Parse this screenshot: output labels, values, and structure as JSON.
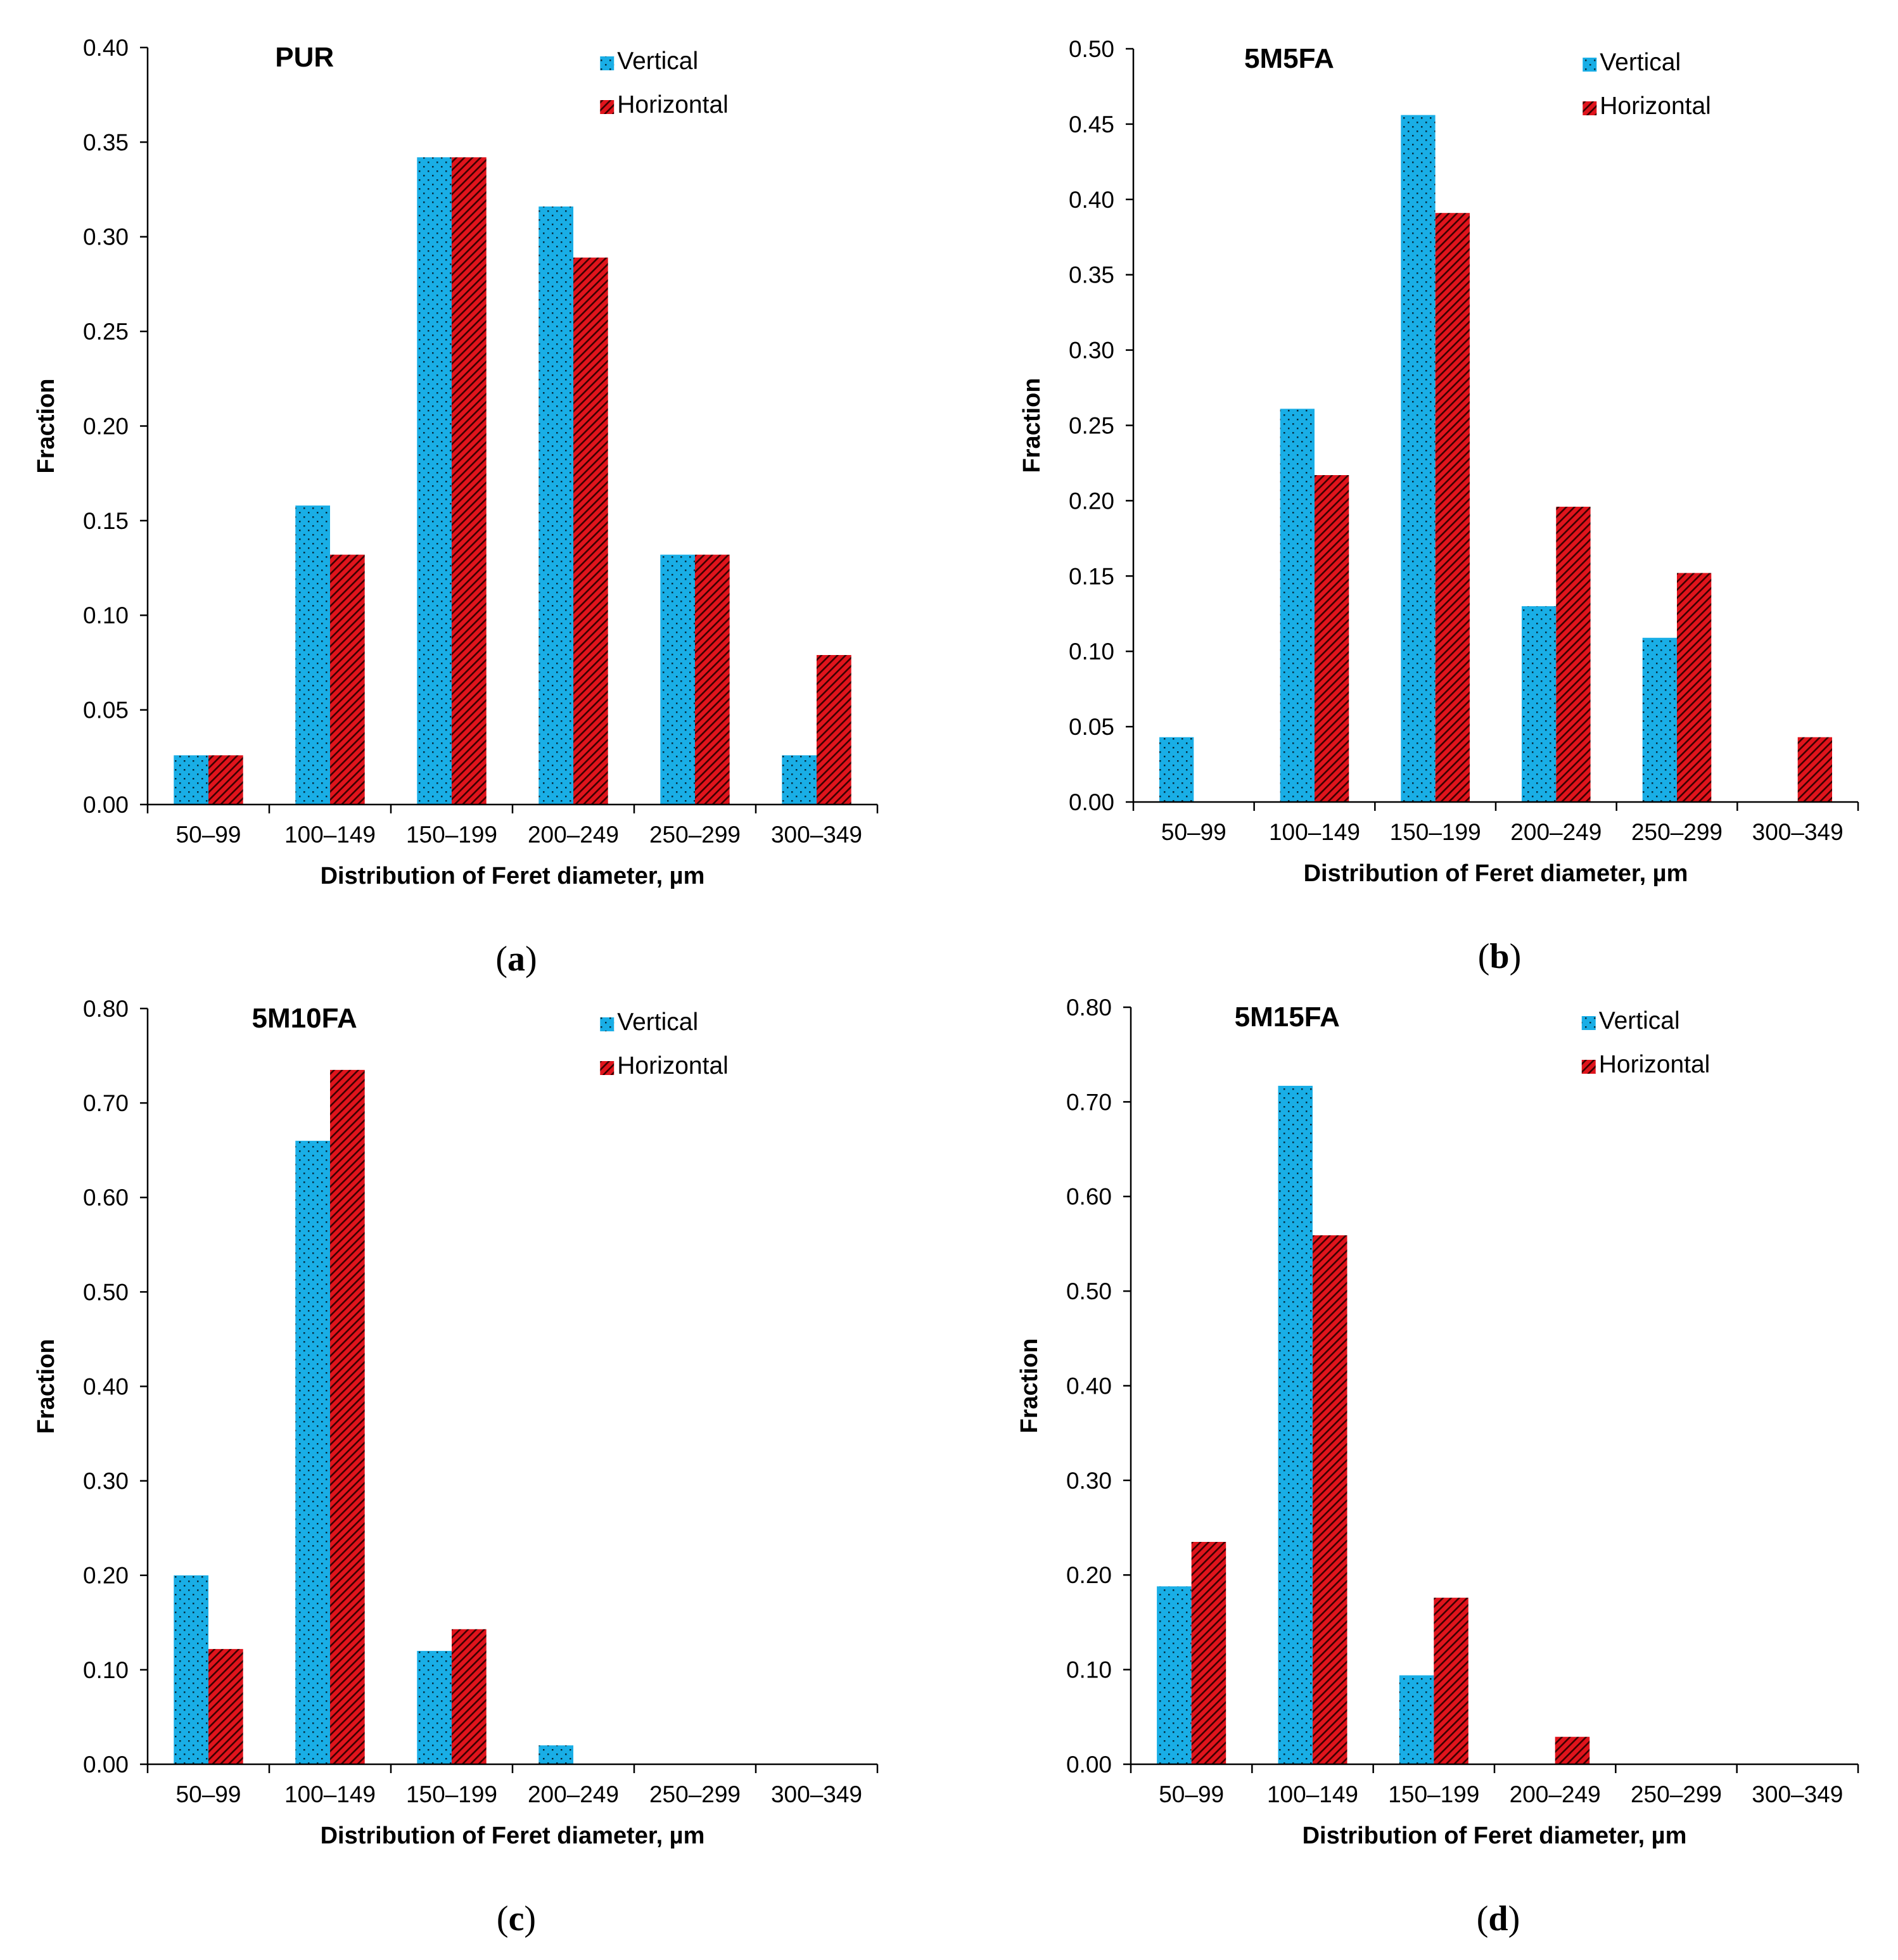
{
  "legend_labels": [
    "Vertical",
    "Horizontal"
  ],
  "colors": {
    "vertical": "#19aee6",
    "horizontal": "#e0141c",
    "axis": "#000000"
  },
  "chart_data": [
    {
      "type": "bar",
      "panel_label": "a",
      "title": "PUR",
      "xlabel": "Distribution of Feret diameter, µm",
      "ylabel": "Fraction",
      "categories": [
        "50–99",
        "100–149",
        "150–199",
        "200–249",
        "250–299",
        "300–349"
      ],
      "ylim": [
        0,
        0.4
      ],
      "ytick_step": 0.05,
      "ytick_labels": [
        "0.00",
        "0.05",
        "0.10",
        "0.15",
        "0.20",
        "0.25",
        "0.30",
        "0.35",
        "0.40"
      ],
      "legend_position": "top-right",
      "series": [
        {
          "name": "Vertical",
          "values": [
            0.026,
            0.158,
            0.342,
            0.316,
            0.132,
            0.026
          ]
        },
        {
          "name": "Horizontal",
          "values": [
            0.026,
            0.132,
            0.342,
            0.289,
            0.132,
            0.079
          ]
        }
      ]
    },
    {
      "type": "bar",
      "panel_label": "b",
      "title": "5M5FA",
      "xlabel": "Distribution of Feret diameter, µm",
      "ylabel": "Fraction",
      "categories": [
        "50–99",
        "100–149",
        "150–199",
        "200–249",
        "250–299",
        "300–349"
      ],
      "ylim": [
        0,
        0.5
      ],
      "ytick_step": 0.05,
      "ytick_labels": [
        "0.00",
        "0.05",
        "0.10",
        "0.15",
        "0.20",
        "0.25",
        "0.30",
        "0.35",
        "0.40",
        "0.45",
        "0.50"
      ],
      "legend_position": "top-right",
      "series": [
        {
          "name": "Vertical",
          "values": [
            0.043,
            0.261,
            0.456,
            0.13,
            0.109,
            0
          ]
        },
        {
          "name": "Horizontal",
          "values": [
            0,
            0.217,
            0.391,
            0.196,
            0.152,
            0.043
          ]
        }
      ]
    },
    {
      "type": "bar",
      "panel_label": "c",
      "title": "5M10FA",
      "xlabel": "Distribution of Feret diameter, µm",
      "ylabel": "Fraction",
      "categories": [
        "50–99",
        "100–149",
        "150–199",
        "200–249",
        "250–299",
        "300–349"
      ],
      "ylim": [
        0,
        0.8
      ],
      "ytick_step": 0.1,
      "ytick_labels": [
        "0.00",
        "0.10",
        "0.20",
        "0.30",
        "0.40",
        "0.50",
        "0.60",
        "0.70",
        "0.80"
      ],
      "legend_position": "top-right",
      "series": [
        {
          "name": "Vertical",
          "values": [
            0.2,
            0.66,
            0.12,
            0.02,
            0,
            0
          ]
        },
        {
          "name": "Horizontal",
          "values": [
            0.122,
            0.735,
            0.143,
            0,
            0,
            0
          ]
        }
      ]
    },
    {
      "type": "bar",
      "panel_label": "d",
      "title": "5M15FA",
      "xlabel": "Distribution of Feret diameter, µm",
      "ylabel": "Fraction",
      "categories": [
        "50–99",
        "100–149",
        "150–199",
        "200–249",
        "250–299",
        "300–349"
      ],
      "ylim": [
        0,
        0.8
      ],
      "ytick_step": 0.1,
      "ytick_labels": [
        "0.00",
        "0.10",
        "0.20",
        "0.30",
        "0.40",
        "0.50",
        "0.60",
        "0.70",
        "0.80"
      ],
      "legend_position": "top-right",
      "series": [
        {
          "name": "Vertical",
          "values": [
            0.188,
            0.717,
            0.094,
            0,
            0,
            0
          ]
        },
        {
          "name": "Horizontal",
          "values": [
            0.235,
            0.559,
            0.176,
            0.029,
            0,
            0
          ]
        }
      ]
    }
  ]
}
